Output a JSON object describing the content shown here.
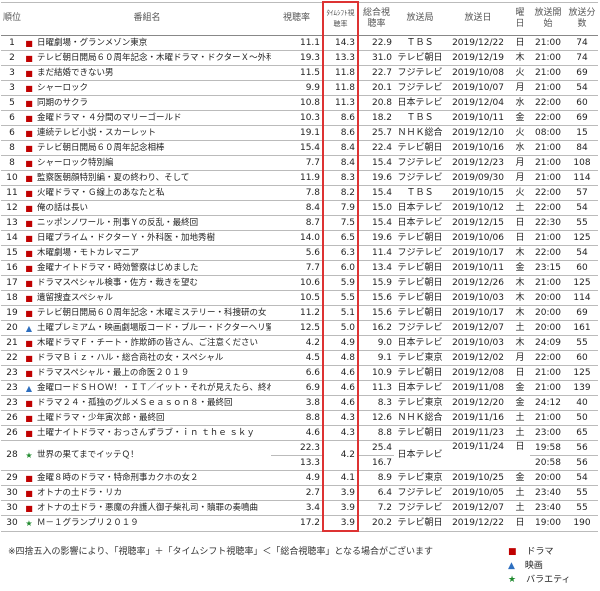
{
  "table": {
    "header": [
      "順位",
      "番組名",
      "視聴率",
      "ﾀｲﾑｼﾌﾄ視聴率",
      "総合視聴率",
      "放送局",
      "放送日",
      "曜日",
      "放送開始",
      "放送分数"
    ],
    "rows": [
      {
        "icon": "■",
        "cells": [
          "1",
          "日曜劇場・グランメゾン東京",
          "11.1",
          "14.3",
          "22.9",
          "ＴＢＳ",
          "2019/12/22",
          "日",
          "21:00",
          "74"
        ]
      },
      {
        "icon": "■",
        "cells": [
          "2",
          "テレビ朝日開局６０周年記念・木曜ドラマ・ドクターＸ～外科医・大門未知子～最終回",
          "19.3",
          "13.3",
          "31.0",
          "テレビ朝日",
          "2019/12/19",
          "木",
          "21:00",
          "74"
        ]
      },
      {
        "icon": "■",
        "cells": [
          "3",
          "まだ結婚できない男",
          "11.5",
          "11.8",
          "22.7",
          "フジテレビ",
          "2019/10/08",
          "火",
          "21:00",
          "69"
        ]
      },
      {
        "icon": "■",
        "cells": [
          "3",
          "シャーロック",
          "9.9",
          "11.8",
          "20.1",
          "フジテレビ",
          "2019/10/07",
          "月",
          "21:00",
          "54"
        ]
      },
      {
        "icon": "■",
        "cells": [
          "5",
          "同期のサクラ",
          "10.8",
          "11.3",
          "20.8",
          "日本テレビ",
          "2019/12/04",
          "水",
          "22:00",
          "60"
        ]
      },
      {
        "icon": "■",
        "cells": [
          "6",
          "金曜ドラマ・４分間のマリーゴールド",
          "10.3",
          "8.6",
          "18.2",
          "ＴＢＳ",
          "2019/10/11",
          "金",
          "22:00",
          "69"
        ]
      },
      {
        "icon": "■",
        "cells": [
          "6",
          "連続テレビ小説・スカーレット",
          "19.1",
          "8.6",
          "25.7",
          "ＮＨＫ総合",
          "2019/12/10",
          "火",
          "08:00",
          "15"
        ]
      },
      {
        "icon": "■",
        "cells": [
          "8",
          "テレビ朝日開局６０周年記念相棒",
          "15.4",
          "8.4",
          "22.4",
          "テレビ朝日",
          "2019/10/16",
          "水",
          "21:00",
          "84"
        ]
      },
      {
        "icon": "■",
        "cells": [
          "8",
          "シャーロック特別編",
          "7.7",
          "8.4",
          "15.4",
          "フジテレビ",
          "2019/12/23",
          "月",
          "21:00",
          "108"
        ]
      },
      {
        "icon": "■",
        "cells": [
          "10",
          "監察医朝顔特別編・夏の終わり、そして",
          "11.9",
          "8.3",
          "19.6",
          "フジテレビ",
          "2019/09/30",
          "月",
          "21:00",
          "114"
        ]
      },
      {
        "icon": "■",
        "cells": [
          "11",
          "火曜ドラマ・Ｇ線上のあなたと私",
          "7.8",
          "8.2",
          "15.4",
          "ＴＢＳ",
          "2019/10/15",
          "火",
          "22:00",
          "57"
        ]
      },
      {
        "icon": "■",
        "cells": [
          "12",
          "俺の話は長い",
          "8.4",
          "7.9",
          "15.0",
          "日本テレビ",
          "2019/10/12",
          "土",
          "22:00",
          "54"
        ]
      },
      {
        "icon": "■",
        "cells": [
          "13",
          "ニッポンノワール・刑事Ｙの反乱・最終回",
          "8.7",
          "7.5",
          "15.4",
          "日本テレビ",
          "2019/12/15",
          "日",
          "22:30",
          "55"
        ]
      },
      {
        "icon": "■",
        "cells": [
          "14",
          "日曜プライム・ドクターＹ・外科医・加地秀樹",
          "14.0",
          "6.5",
          "19.6",
          "テレビ朝日",
          "2019/10/06",
          "日",
          "21:00",
          "125"
        ]
      },
      {
        "icon": "■",
        "cells": [
          "15",
          "木曜劇場・モトカレマニア",
          "5.6",
          "6.3",
          "11.4",
          "フジテレビ",
          "2019/10/17",
          "木",
          "22:00",
          "54"
        ]
      },
      {
        "icon": "■",
        "cells": [
          "16",
          "金曜ナイトドラマ・時効警察はじめました",
          "7.7",
          "6.0",
          "13.4",
          "テレビ朝日",
          "2019/10/11",
          "金",
          "23:15",
          "60"
        ]
      },
      {
        "icon": "■",
        "cells": [
          "17",
          "ドラマスペシャル検事・佐方・裁きを望む",
          "10.6",
          "5.9",
          "15.9",
          "テレビ朝日",
          "2019/12/26",
          "木",
          "21:00",
          "125"
        ]
      },
      {
        "icon": "■",
        "cells": [
          "18",
          "遺留捜査スペシャル",
          "10.5",
          "5.5",
          "15.6",
          "テレビ朝日",
          "2019/10/03",
          "木",
          "20:00",
          "114"
        ]
      },
      {
        "icon": "■",
        "cells": [
          "19",
          "テレビ朝日開局６０周年記念・木曜ミステリー・科捜研の女",
          "11.2",
          "5.1",
          "15.6",
          "テレビ朝日",
          "2019/10/17",
          "木",
          "20:00",
          "69"
        ]
      },
      {
        "icon": "▲",
        "cells": [
          "20",
          "土曜プレミアム・映画劇場版コード・ブルー・ドクターヘリ緊急救命",
          "12.5",
          "5.0",
          "16.2",
          "フジテレビ",
          "2019/12/07",
          "土",
          "20:00",
          "161"
        ]
      },
      {
        "icon": "■",
        "cells": [
          "21",
          "木曜ドラマＦ・チート・詐欺師の皆さん、ご注意ください",
          "4.2",
          "4.9",
          "9.0",
          "日本テレビ",
          "2019/10/03",
          "木",
          "24:09",
          "55"
        ]
      },
      {
        "icon": "■",
        "cells": [
          "22",
          "ドラマＢｉｚ・ハル・総合商社の女・スペシャル",
          "4.5",
          "4.8",
          "9.1",
          "テレビ東京",
          "2019/12/02",
          "月",
          "22:00",
          "60"
        ]
      },
      {
        "icon": "■",
        "cells": [
          "23",
          "ドラマスペシャル・最上の命医２０１９",
          "6.6",
          "4.6",
          "10.9",
          "テレビ朝日",
          "2019/12/08",
          "日",
          "21:00",
          "125"
        ]
      },
      {
        "icon": "▲",
        "cells": [
          "23",
          "金曜ロードＳＨＯＷ！・ＩＴ／イット・それが見えたら、終わり。",
          "6.9",
          "4.6",
          "11.3",
          "日本テレビ",
          "2019/11/08",
          "金",
          "21:00",
          "139"
        ]
      },
      {
        "icon": "■",
        "cells": [
          "23",
          "ドラマ２４・孤独のグルメＳｅａｓｏｎ８・最終回",
          "3.8",
          "4.6",
          "8.3",
          "テレビ東京",
          "2019/12/20",
          "金",
          "24:12",
          "40"
        ]
      },
      {
        "icon": "■",
        "cells": [
          "26",
          "土曜ドラマ・少年寅次郎・最終回",
          "8.8",
          "4.3",
          "12.6",
          "ＮＨＫ総合",
          "2019/11/16",
          "土",
          "21:00",
          "50"
        ]
      },
      {
        "icon": "■",
        "cells": [
          "26",
          "土曜ナイトドラマ・おっさんずラブ・ｉｎ ｔｈｅ ｓｋｙ",
          "4.6",
          "4.3",
          "8.8",
          "テレビ朝日",
          "2019/11/23",
          "土",
          "23:00",
          "65"
        ]
      },
      {
        "icon": "★",
        "cells": [
          "28",
          "世界の果てまでイッテＱ！",
          [
            "22.3",
            "13.3"
          ],
          "4.2",
          [
            "25.4",
            "16.7"
          ],
          "日本テレビ",
          "2019/11/24",
          "日",
          [
            "19:58",
            "20:58"
          ],
          [
            "56",
            "56"
          ]
        ]
      },
      {
        "icon": "■",
        "cells": [
          "29",
          "金曜８時のドラマ・特命刑事カクホの女２",
          "4.9",
          "4.1",
          "8.9",
          "テレビ東京",
          "2019/10/25",
          "金",
          "20:00",
          "54"
        ]
      },
      {
        "icon": "■",
        "cells": [
          "30",
          "オトナの土ドラ・リカ",
          "2.7",
          "3.9",
          "6.4",
          "フジテレビ",
          "2019/10/05",
          "土",
          "23:40",
          "55"
        ]
      },
      {
        "icon": "■",
        "cells": [
          "30",
          "オトナの土ドラ・悪魔の弁護人御子柴礼司・贖罪の奏鳴曲",
          "3.4",
          "3.9",
          "7.2",
          "フジテレビ",
          "2019/12/07",
          "土",
          "23:40",
          "55"
        ]
      },
      {
        "icon": "★",
        "cells": [
          "30",
          "Ｍ－１グランプリ２０１９",
          "17.2",
          "3.9",
          "20.2",
          "テレビ朝日",
          "2019/12/22",
          "日",
          "19:00",
          "190"
        ]
      }
    ]
  },
  "note": "※四捨五入の影響により、「視聴率」＋「タイムシフト視聴率」＜「総合視聴率」となる場合がございます",
  "legend": [
    {
      "icon": "■",
      "label": "ドラマ",
      "color": "#c00000"
    },
    {
      "icon": "▲",
      "label": "映画",
      "color": "#2e6fc0"
    },
    {
      "icon": "★",
      "label": "バラエティ",
      "color": "#1f8a2e"
    }
  ]
}
